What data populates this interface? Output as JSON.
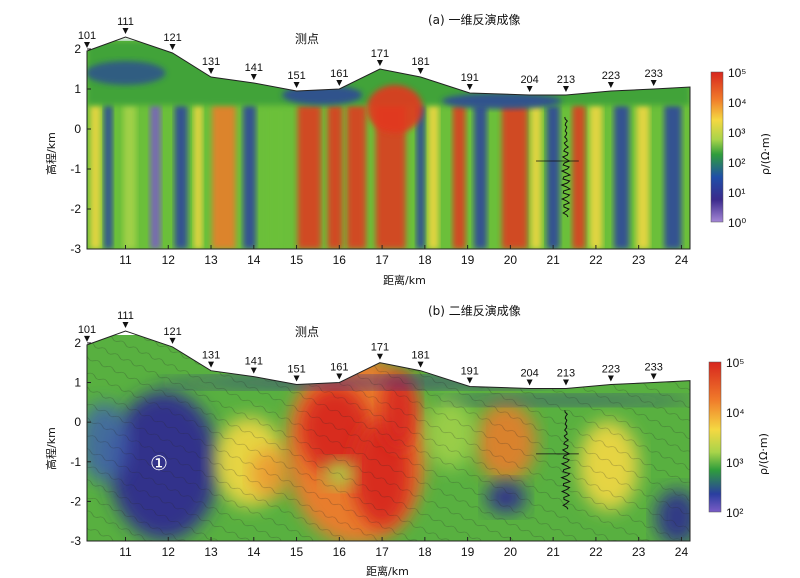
{
  "panels": [
    {
      "title": "(a) 一维反演成像",
      "station_title": "测点",
      "xlabel": "距离/km",
      "ylabel": "高程/km",
      "colorbar_label": "ρ/(Ω·m)",
      "colorbar_ticks": [
        "10⁵",
        "10⁴",
        "10³",
        "10²",
        "10¹",
        "10⁰"
      ],
      "annotation": ""
    },
    {
      "title": "(b) 二维反演成像",
      "station_title": "测点",
      "xlabel": "距离/km",
      "ylabel": "高程/km",
      "colorbar_label": "ρ/(Ω·m)",
      "colorbar_ticks": [
        "10⁵",
        "10⁴",
        "10³",
        "10²"
      ],
      "annotation": "①"
    }
  ],
  "stations": [
    {
      "label": "101",
      "x": 10.1,
      "elev": 1.95
    },
    {
      "label": "111",
      "x": 11.0,
      "elev": 2.3
    },
    {
      "label": "121",
      "x": 12.1,
      "elev": 1.9
    },
    {
      "label": "131",
      "x": 13.0,
      "elev": 1.3
    },
    {
      "label": "141",
      "x": 14.0,
      "elev": 1.15
    },
    {
      "label": "151",
      "x": 15.0,
      "elev": 0.95
    },
    {
      "label": "161",
      "x": 16.0,
      "elev": 1.0
    },
    {
      "label": "171",
      "x": 16.95,
      "elev": 1.5
    },
    {
      "label": "181",
      "x": 17.9,
      "elev": 1.3
    },
    {
      "label": "191",
      "x": 19.05,
      "elev": 0.9
    },
    {
      "label": "204",
      "x": 20.45,
      "elev": 0.85
    },
    {
      "label": "213",
      "x": 21.3,
      "elev": 0.85
    },
    {
      "label": "223",
      "x": 22.35,
      "elev": 0.95
    },
    {
      "label": "233",
      "x": 23.35,
      "elev": 1.0
    }
  ],
  "x_ticks": [
    "11",
    "12",
    "13",
    "14",
    "15",
    "16",
    "17",
    "18",
    "19",
    "20",
    "21",
    "22",
    "23",
    "24"
  ],
  "y_ticks_a": [
    "2",
    "1",
    "0",
    "-1",
    "-2",
    "-3"
  ],
  "y_ticks_b": [
    "2",
    "1",
    "0",
    "-1",
    "-2",
    "-3"
  ],
  "chart_data": [
    {
      "type": "heatmap",
      "title": "(a) 一维反演成像",
      "xlabel": "距离/km",
      "ylabel": "高程/km",
      "xlim": [
        10.1,
        24.2
      ],
      "ylim": [
        -3,
        2.2
      ],
      "colorbar": {
        "label": "ρ/(Ω·m)",
        "range": [
          1,
          100000
        ],
        "scale": "log"
      },
      "high_resistivity_bands_km": [
        [
          13.0,
          14.0
        ],
        [
          15.0,
          17.9
        ],
        [
          18.6,
          19.1
        ],
        [
          19.8,
          20.6
        ]
      ]
    },
    {
      "type": "heatmap",
      "title": "(b) 二维反演成像",
      "xlabel": "距离/km",
      "ylabel": "高程/km",
      "xlim": [
        10.1,
        24.2
      ],
      "ylim": [
        -3,
        2.2
      ],
      "colorbar": {
        "label": "ρ/(Ω·m)",
        "range": [
          100,
          100000
        ],
        "scale": "log"
      },
      "features": [
        {
          "label": "①",
          "x": 11.9,
          "y": -1.1,
          "type": "low resistivity"
        },
        {
          "label": "",
          "x": 16.6,
          "y": -0.6,
          "type": "high resistivity"
        }
      ]
    }
  ]
}
